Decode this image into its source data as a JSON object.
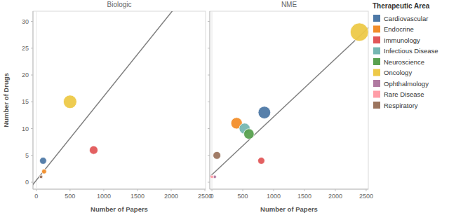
{
  "chart_data": [
    {
      "type": "scatter",
      "title": "Biologic",
      "x_label": "Number of Papers",
      "y_label": "Number of Drugs",
      "xlim": [
        -50,
        2510
      ],
      "ylim": [
        -1.3,
        31.9
      ],
      "xticks": [
        0,
        500,
        1000,
        1500,
        2000,
        2500
      ],
      "yticks": [
        0,
        5,
        10,
        15,
        20,
        25,
        30
      ],
      "series": [
        {
          "name": "Cardiovascular",
          "color": "#4e79a7",
          "x": [
            100
          ],
          "values": [
            4
          ]
        },
        {
          "name": "Endocrine",
          "color": "#f28e2b",
          "x": [
            115
          ],
          "values": [
            2
          ]
        },
        {
          "name": "Immunology",
          "color": "#e15759",
          "x": [
            850
          ],
          "values": [
            6
          ]
        },
        {
          "name": "Oncology",
          "color": "#edc948",
          "x": [
            500
          ],
          "values": [
            15
          ]
        },
        {
          "name": "Respiratory",
          "color": "#9c755f",
          "x": [
            70
          ],
          "values": [
            1
          ]
        }
      ],
      "trend_line": {
        "x": [
          -100,
          2500
        ],
        "values": [
          -1.2,
          39.5
        ]
      }
    },
    {
      "type": "scatter",
      "title": "NME",
      "x_label": "Number of Papers",
      "legend_title": "Therapeutic Area",
      "xlim": [
        -35,
        2535
      ],
      "ylim": [
        -1.3,
        31.9
      ],
      "xticks": [
        0,
        500,
        1000,
        1500,
        2000,
        2500
      ],
      "yticks": [
        0,
        5,
        10,
        15,
        20,
        25,
        30
      ],
      "tick_labels": "x",
      "series": [
        {
          "name": "Cardiovascular",
          "color": "#4e79a7",
          "x": [
            850
          ],
          "values": [
            13
          ]
        },
        {
          "name": "Endocrine",
          "color": "#f28e2b",
          "x": [
            400
          ],
          "values": [
            11
          ]
        },
        {
          "name": "Immunology",
          "color": "#e15759",
          "x": [
            800
          ],
          "values": [
            4
          ]
        },
        {
          "name": "Infectious Disease",
          "color": "#76b7b2",
          "x": [
            530
          ],
          "values": [
            10
          ]
        },
        {
          "name": "Neuroscience",
          "color": "#59a14f",
          "x": [
            600
          ],
          "values": [
            9
          ]
        },
        {
          "name": "Oncology",
          "color": "#edc948",
          "x": [
            2390
          ],
          "values": [
            28
          ]
        },
        {
          "name": "Ophthalmology",
          "color": "#b07aa1",
          "x": [
            45
          ],
          "values": [
            1
          ]
        },
        {
          "name": "Rare Disease",
          "color": "#ff9da7",
          "x": [
            0
          ],
          "values": [
            1
          ]
        },
        {
          "name": "Respiratory",
          "color": "#9c755f",
          "x": [
            80
          ],
          "values": [
            5
          ]
        }
      ],
      "trend_line": {
        "x": [
          -100,
          2600
        ],
        "values": [
          0.32,
          29.48
        ]
      }
    }
  ]
}
